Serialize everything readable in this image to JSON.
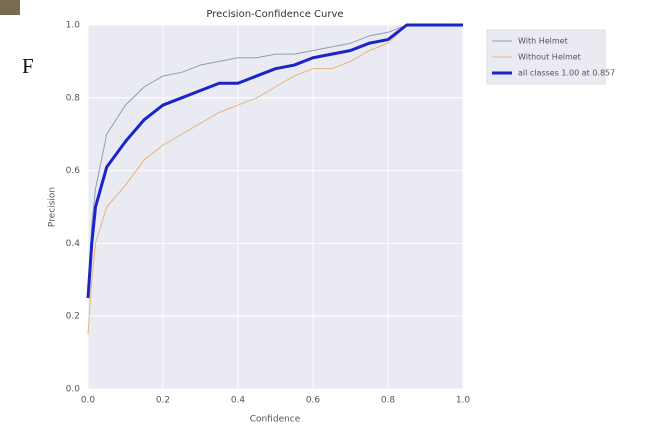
{
  "chart_data": {
    "type": "line",
    "title": "Precision-Confidence Curve",
    "xlabel": "Confidence",
    "ylabel": "Precision",
    "x": [
      0,
      0.01,
      0.02,
      0.05,
      0.1,
      0.15,
      0.2,
      0.25,
      0.3,
      0.35,
      0.4,
      0.45,
      0.5,
      0.55,
      0.6,
      0.65,
      0.7,
      0.75,
      0.8,
      0.85,
      0.9,
      0.95,
      1.0
    ],
    "series": [
      {
        "name": "With Helmet",
        "color": "#8f9db3",
        "width": 1,
        "values": [
          0.25,
          0.45,
          0.55,
          0.7,
          0.78,
          0.83,
          0.86,
          0.87,
          0.89,
          0.9,
          0.91,
          0.91,
          0.92,
          0.92,
          0.93,
          0.94,
          0.95,
          0.97,
          0.98,
          1.0,
          1.0,
          1.0,
          1.0
        ]
      },
      {
        "name": "Without Helmet",
        "color": "#e3b57e",
        "width": 1,
        "values": [
          0.15,
          0.3,
          0.4,
          0.5,
          0.56,
          0.63,
          0.67,
          0.7,
          0.73,
          0.76,
          0.78,
          0.8,
          0.83,
          0.86,
          0.88,
          0.88,
          0.9,
          0.93,
          0.95,
          1.0,
          1.0,
          1.0,
          1.0
        ]
      },
      {
        "name": "all classes 1.00 at 0.857",
        "color": "#1c24c8",
        "width": 3,
        "values": [
          0.25,
          0.4,
          0.5,
          0.61,
          0.68,
          0.74,
          0.78,
          0.8,
          0.82,
          0.84,
          0.84,
          0.86,
          0.88,
          0.89,
          0.91,
          0.92,
          0.93,
          0.95,
          0.96,
          1.0,
          1.0,
          1.0,
          1.0
        ]
      }
    ],
    "xlim": [
      0,
      1
    ],
    "ylim": [
      0,
      1
    ],
    "xticks": [
      {
        "value": 0,
        "label": "0.0"
      },
      0.2,
      0.4,
      0.6,
      0.8,
      {
        "value": 1,
        "label": "1.0"
      }
    ],
    "yticks": [
      {
        "value": 0,
        "label": "0.0"
      },
      0.2,
      0.4,
      0.6,
      0.8,
      {
        "value": 1,
        "label": "1.0"
      }
    ],
    "grid": true,
    "legend": "outside-right"
  },
  "stray_text": "F"
}
